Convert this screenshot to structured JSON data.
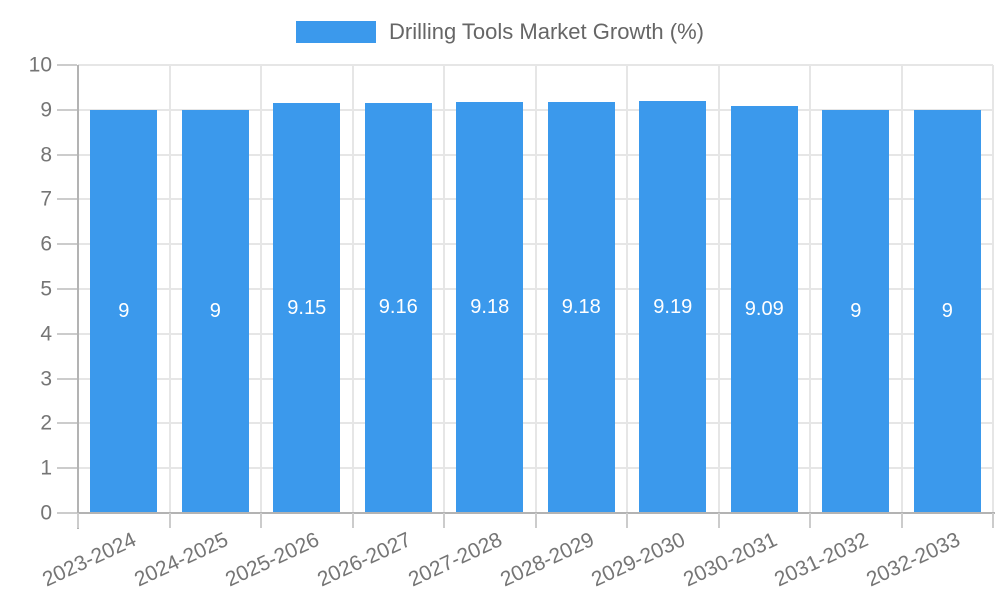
{
  "chart_data": {
    "type": "bar",
    "title": "Drilling Tools Market Growth (%)",
    "categories": [
      "2023-2024",
      "2024-2025",
      "2025-2026",
      "2026-2027",
      "2027-2028",
      "2028-2029",
      "2029-2030",
      "2030-2031",
      "2031-2032",
      "2032-2033"
    ],
    "values": [
      9,
      9,
      9.15,
      9.16,
      9.18,
      9.18,
      9.19,
      9.09,
      9,
      9
    ],
    "xlabel": "",
    "ylabel": "",
    "ylim": [
      0,
      10
    ],
    "ytick_step": 1,
    "grid": true,
    "legend_position": "top-center",
    "value_labels": "inside-center",
    "colors": {
      "bar": "#3b99ec",
      "bar_label": "#ffffff",
      "axis_text": "#757575",
      "legend_text": "#666666",
      "grid": "#e6e6e6",
      "axis_line": "#b3b3b3",
      "tick": "#cccccc",
      "background": "#ffffff"
    }
  }
}
